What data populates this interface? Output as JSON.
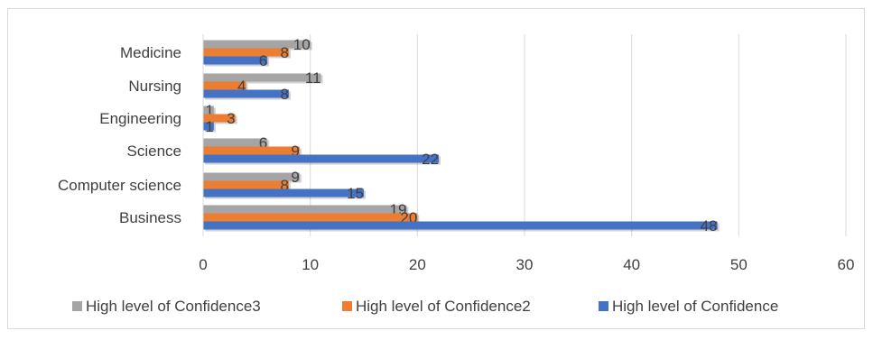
{
  "chart_data": {
    "type": "bar",
    "orientation": "horizontal",
    "categories": [
      "Business",
      "Computer science",
      "Science",
      "Engineering",
      "Nursing",
      "Medicine"
    ],
    "series": [
      {
        "name": "High level of Confidence3",
        "values": [
          19,
          9,
          6,
          1,
          11,
          10
        ],
        "color": "#a5a5a5"
      },
      {
        "name": "High level of Confidence2",
        "values": [
          20,
          8,
          9,
          3,
          4,
          8
        ],
        "color": "#ed7d31"
      },
      {
        "name": "High level of Confidence",
        "values": [
          48,
          15,
          22,
          1,
          8,
          6
        ],
        "color": "#4472c4"
      }
    ],
    "xlim": [
      0,
      60
    ],
    "xticks": [
      0,
      10,
      20,
      30,
      40,
      50,
      60
    ],
    "grid": true,
    "legend_position": "bottom",
    "data_labels": true
  }
}
